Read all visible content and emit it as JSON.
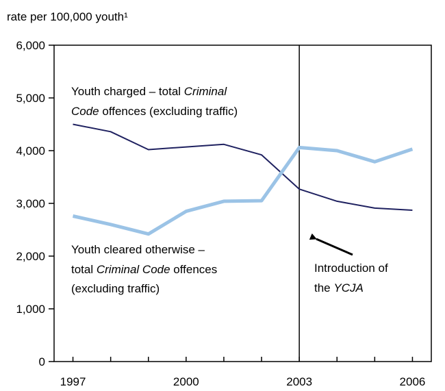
{
  "chart_data": {
    "type": "line",
    "ylabel": "rate per 100,000 youth¹",
    "ylim": [
      0,
      6000
    ],
    "yticks": [
      "0",
      "1,000",
      "2,000",
      "3,000",
      "4,000",
      "5,000",
      "6,000"
    ],
    "ytick_values": [
      0,
      1000,
      2000,
      3000,
      4000,
      5000,
      6000
    ],
    "xlim": [
      1996.5,
      2006.5
    ],
    "xticks": [
      "1997",
      "2000",
      "2003",
      "2006"
    ],
    "xtick_values": [
      1997,
      2000,
      2003,
      2006
    ],
    "x": [
      1997,
      1998,
      1999,
      2000,
      2001,
      2002,
      2003,
      2004,
      2005,
      2006
    ],
    "grid": false,
    "series": [
      {
        "name": "Youth charged – total Criminal Code offences (excluding traffic)",
        "color": "#1f2160",
        "values": [
          4500,
          4360,
          4020,
          4070,
          4120,
          3920,
          3270,
          3040,
          2910,
          2870
        ]
      },
      {
        "name": "Youth cleared otherwise – total Criminal Code offences (excluding traffic)",
        "color": "#9bc3e6",
        "values": [
          2760,
          2600,
          2420,
          2850,
          3040,
          3050,
          4060,
          4000,
          3790,
          4030
        ]
      }
    ],
    "vline": {
      "x": 2003
    },
    "annotations": {
      "charged_l1": "Youth charged – total ",
      "charged_l1_i": "Criminal",
      "charged_l2_i": "Code",
      "charged_l2": " offences (excluding traffic)",
      "cleared_l1": "Youth cleared otherwise –",
      "cleared_l2": "total ",
      "cleared_l2_i": "Criminal Code",
      "cleared_l2_b": " offences",
      "cleared_l3": "(excluding traffic)",
      "ycja_l1": "Introduction of",
      "ycja_l2": "the ",
      "ycja_l2_i": "YCJA"
    }
  }
}
